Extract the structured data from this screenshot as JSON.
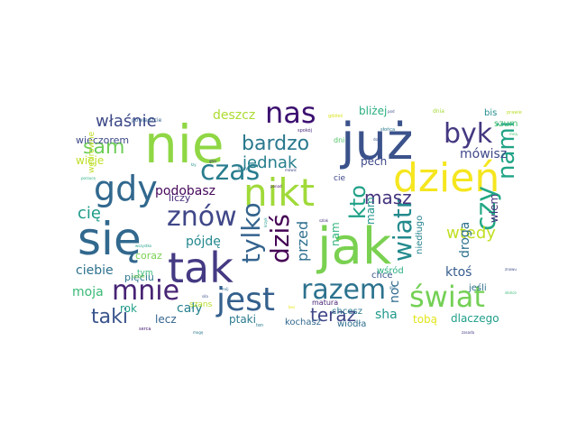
{
  "words": [
    {
      "text": "nie",
      "color": "#8fd744"
    },
    {
      "text": "już",
      "color": "#3b528b"
    },
    {
      "text": "się",
      "color": "#31688e"
    },
    {
      "text": "jak",
      "color": "#7ad151"
    },
    {
      "text": "nikt",
      "color": "#a0da39"
    },
    {
      "text": "dzień",
      "color": "#f5e61f"
    },
    {
      "text": "tak",
      "color": "#443a83"
    },
    {
      "text": "jest",
      "color": "#35608d"
    },
    {
      "text": "mnie",
      "color": "#482475"
    },
    {
      "text": "świat",
      "color": "#74d055"
    },
    {
      "text": "razem",
      "color": "#2c728e"
    },
    {
      "text": "nas",
      "color": "#3b0f70"
    },
    {
      "text": "gdy",
      "color": "#31688e"
    },
    {
      "text": "byk",
      "color": "#453781"
    },
    {
      "text": "znów",
      "color": "#3f4788"
    },
    {
      "text": "czas",
      "color": "#287d8e"
    },
    {
      "text": "czy",
      "color": "#22a884"
    },
    {
      "text": "nami",
      "color": "#20a386"
    },
    {
      "text": "bardzo",
      "color": "#2a788e"
    },
    {
      "text": "tylko",
      "color": "#33638d"
    },
    {
      "text": "dziś",
      "color": "#440154"
    },
    {
      "text": "wiatr",
      "color": "#238a8d"
    },
    {
      "text": "kto",
      "color": "#1fa187"
    },
    {
      "text": "sam",
      "color": "#6ece58"
    },
    {
      "text": "taki",
      "color": "#3a548c"
    },
    {
      "text": "masz",
      "color": "#46337e"
    },
    {
      "text": "teraz",
      "color": "#404688"
    },
    {
      "text": "jednak",
      "color": "#277f8e"
    },
    {
      "text": "właśnie",
      "color": "#3e4a89"
    },
    {
      "text": "wtedy",
      "color": "#c2df23"
    },
    {
      "text": "podobasz",
      "color": "#46075a"
    },
    {
      "text": "przed",
      "color": "#2e6f8e"
    },
    {
      "text": "ciebie",
      "color": "#2d718e"
    },
    {
      "text": "cię",
      "color": "#1e9b8a"
    },
    {
      "text": "deszcz",
      "color": "#addc30"
    },
    {
      "text": "pójdę",
      "color": "#23888e"
    },
    {
      "text": "mówisz",
      "color": "#3f4889"
    },
    {
      "text": "droga",
      "color": "#2d718e"
    },
    {
      "text": "noc",
      "color": "#2f6c8e"
    },
    {
      "text": "ktoś",
      "color": "#365c8d"
    },
    {
      "text": "cały",
      "color": "#26818e"
    },
    {
      "text": "moja",
      "color": "#3aba76"
    },
    {
      "text": "sha",
      "color": "#1f988b"
    },
    {
      "text": "tobą",
      "color": "#e2e418"
    },
    {
      "text": "dlaczego",
      "color": "#1f9e89"
    },
    {
      "text": "ptaki",
      "color": "#297a8e"
    },
    {
      "text": "lecz",
      "color": "#33638d"
    },
    {
      "text": "rok",
      "color": "#1fa088"
    },
    {
      "text": "nam",
      "color": "#31b57b"
    },
    {
      "text": "mam",
      "color": "#20928c"
    },
    {
      "text": "wiem",
      "color": "#46327e"
    },
    {
      "text": "bliżej",
      "color": "#29af7f"
    },
    {
      "text": "pech",
      "color": "#3e4989"
    },
    {
      "text": "wieczorem",
      "color": "#3e4a89"
    },
    {
      "text": "wieje",
      "color": "#bddf26"
    },
    {
      "text": "liczy",
      "color": "#472d7b"
    },
    {
      "text": "coraz",
      "color": "#7ad151"
    },
    {
      "text": "pięciu",
      "color": "#2a788e"
    },
    {
      "text": "szum",
      "color": "#44bf70"
    },
    {
      "text": "bis",
      "color": "#228c8d"
    },
    {
      "text": "chcesz",
      "color": "#2a788e"
    },
    {
      "text": "chce",
      "color": "#38588c"
    },
    {
      "text": "wśród",
      "color": "#29af7f"
    },
    {
      "text": "jeśli",
      "color": "#2e6e8e"
    },
    {
      "text": "kochasz",
      "color": "#31688e"
    },
    {
      "text": "wiodła",
      "color": "#2e6e8e"
    },
    {
      "text": "niedługo",
      "color": "#26828e"
    },
    {
      "text": "matura",
      "color": "#482374"
    },
    {
      "text": "tym",
      "color": "#38b977"
    },
    {
      "text": "szans",
      "color": "#b5de2b"
    },
    {
      "text": "cie",
      "color": "#3f4788"
    },
    {
      "text": "dni",
      "color": "#52c569"
    },
    {
      "text": "dnia",
      "color": "#a5db36"
    },
    {
      "text": "wędrowne",
      "color": "#bddf26"
    },
    {
      "text": "powiedzcie",
      "color": "#355f8d"
    },
    {
      "text": "spokój",
      "color": "#472c7a"
    },
    {
      "text": "gdzieś",
      "color": "#d8e219"
    },
    {
      "text": "pod",
      "color": "#3e4c8a"
    },
    {
      "text": "mówić",
      "color": "#404688"
    },
    {
      "text": "krzyk",
      "color": "#1f978b"
    },
    {
      "text": "szlak",
      "color": "#472c7a"
    },
    {
      "text": "słońca",
      "color": "#2a788e"
    },
    {
      "text": "łzy",
      "color": "#1f948c"
    },
    {
      "text": "siła",
      "color": "#3b528b"
    },
    {
      "text": "siebie",
      "color": "#7ad151"
    },
    {
      "text": "zasada",
      "color": "#433d84"
    },
    {
      "text": "słońce",
      "color": "#3aba76"
    },
    {
      "text": "prawie",
      "color": "#b8de29"
    },
    {
      "text": "porzucę",
      "color": "#28ae80"
    },
    {
      "text": "głos",
      "color": "#472d7b"
    },
    {
      "text": "kiedy",
      "color": "#2b748e"
    },
    {
      "text": "ponad",
      "color": "#46085c"
    },
    {
      "text": "wszystko",
      "color": "#1f9e89"
    },
    {
      "text": "znowu",
      "color": "#3e4c8a"
    },
    {
      "text": "bez",
      "color": "#e5e419"
    },
    {
      "text": "mój",
      "color": "#2c728e"
    },
    {
      "text": "serca",
      "color": "#482071"
    },
    {
      "text": "mogę",
      "color": "#2a788e"
    },
    {
      "text": "ten",
      "color": "#297a8e"
    },
    {
      "text": "mną",
      "color": "#4ac16d"
    },
    {
      "text": "dom",
      "color": "#3a538b"
    },
    {
      "text": "gra",
      "color": "#2c718e"
    }
  ]
}
